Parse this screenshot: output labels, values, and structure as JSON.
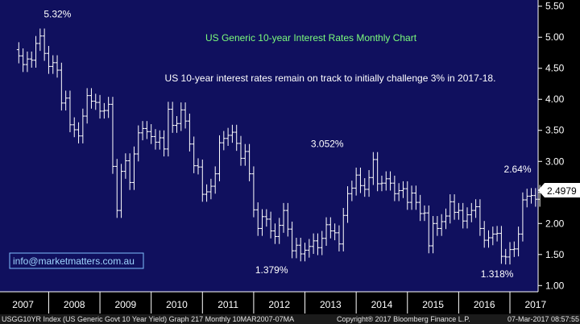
{
  "chart_data": {
    "type": "ohlc",
    "title": "US Generic 10-year Interest Rates Monthly Chart",
    "subtitle": "US 10-year interest rates remain on track to initially challenge 3% in 2017-18.",
    "ylim": [
      0.9,
      5.6
    ],
    "yticks": [
      "5.50",
      "5.00",
      "4.50",
      "4.00",
      "3.50",
      "3.00",
      "2.50",
      "2.00",
      "1.50",
      "1.00"
    ],
    "ytick_values": [
      5.5,
      5.0,
      4.5,
      4.0,
      3.5,
      3.0,
      2.5,
      2.0,
      1.5,
      1.0
    ],
    "xticks": [
      "2007",
      "2008",
      "2009",
      "2010",
      "2011",
      "2012",
      "2013",
      "2014",
      "2015",
      "2016",
      "2017"
    ],
    "last_value": "2.4979",
    "annotations": [
      {
        "text": "5.32%",
        "x": 2007.45,
        "y": 5.32
      },
      {
        "text": "3.052%",
        "x": 2013.5,
        "y": 3.052
      },
      {
        "text": "1.379%",
        "x": 2012.1,
        "y": 1.379
      },
      {
        "text": "2.64%",
        "x": 2016.9,
        "y": 2.64
      },
      {
        "text": "1.318%",
        "x": 2016.5,
        "y": 1.318
      }
    ],
    "closes": [
      4.7,
      4.56,
      4.65,
      4.63,
      4.9,
      5.02,
      4.74,
      4.53,
      4.59,
      4.47,
      3.94,
      4.02,
      3.59,
      3.51,
      3.41,
      3.73,
      4.06,
      3.97,
      3.95,
      3.81,
      3.82,
      3.92,
      2.92,
      2.21,
      2.84,
      3.01,
      2.66,
      3.12,
      3.46,
      3.53,
      3.48,
      3.4,
      3.31,
      3.38,
      3.2,
      3.84,
      3.58,
      3.61,
      3.83,
      3.65,
      3.28,
      2.93,
      2.91,
      2.47,
      2.51,
      2.6,
      2.8,
      3.3,
      3.37,
      3.42,
      3.47,
      3.29,
      3.05,
      3.16,
      2.8,
      2.22,
      1.92,
      2.11,
      2.07,
      1.88,
      1.79,
      1.97,
      2.21,
      1.91,
      1.56,
      1.65,
      1.51,
      1.57,
      1.63,
      1.72,
      1.61,
      1.76,
      1.98,
      1.88,
      1.85,
      1.67,
      2.13,
      2.48,
      2.57,
      2.78,
      2.61,
      2.55,
      2.74,
      3.03,
      2.64,
      2.65,
      2.72,
      2.65,
      2.48,
      2.53,
      2.56,
      2.34,
      2.49,
      2.34,
      2.16,
      2.17,
      1.64,
      2.0,
      1.92,
      2.03,
      2.12,
      2.35,
      2.18,
      2.21,
      2.04,
      2.14,
      2.21,
      2.27,
      1.92,
      1.73,
      1.77,
      1.83,
      1.84,
      1.47,
      1.46,
      1.58,
      1.59,
      1.83,
      2.38,
      2.44,
      2.45,
      2.39,
      2.5
    ],
    "annotation_source_label": "info@marketmatters.com.au",
    "footer_left": "USGG10YR Index (US Generic Govt 10 Year Yield) Graph 217  Monthly 10MAR2007-07MA",
    "footer_mid": "Copyright® 2017 Bloomberg Finance L.P.",
    "footer_right": "07-Mar-2017 08:57:55"
  },
  "colors": {
    "plot_bg": "#10105e",
    "frame": "#ffffff",
    "bars": "#ffffff",
    "title": "#7CFC7C",
    "last_label_bg": "#ffffff"
  }
}
